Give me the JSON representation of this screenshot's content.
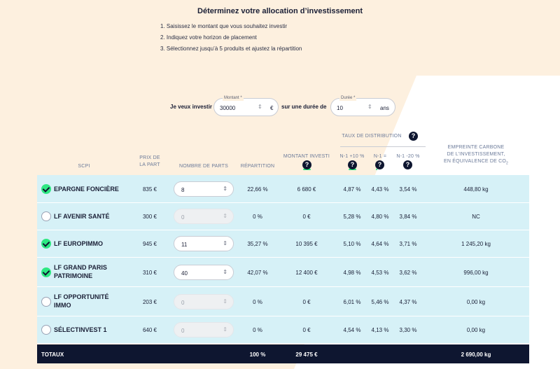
{
  "title": "Déterminez votre allocation d’investissement",
  "steps": [
    "1.  Saisissez le montant que vous souhaitez investir",
    "2.  Indiquez votre horizon de placement",
    "3.  Sélectionnez jusqu’à 5 produits et ajustez la répartition"
  ],
  "form": {
    "invest_label": "Je veux investir",
    "amount_label": "Montant *",
    "amount_value": "30000",
    "amount_unit": "€",
    "duration_text": "sur une durée de",
    "duration_label": "Durée *",
    "duration_value": "10",
    "duration_unit": "ans"
  },
  "headers": {
    "scpi": "SCPI",
    "prix1": "PRIX DE",
    "prix2": "LA PART",
    "parts": "NOMBRE DE PARTS",
    "repartition": "RÉPARTITION",
    "montant": "MONTANT INVESTI",
    "taux": "TAUX DE DISTRIBUTION",
    "n1plus": "N-1 +10 %",
    "n1eq": "N-1 =",
    "n1minus": "N-1 -20 %",
    "emp1": "EMPREINTE CARBONE",
    "emp2": "DE L’INVESTISSEMENT,",
    "emp3": "EN ÉQUIVALENCE DE CO",
    "emp3sub": "2"
  },
  "rows": [
    {
      "name1": "EPARGNE FONCIÈRE",
      "name2": "",
      "checked": true,
      "prix": "835 €",
      "parts": "8",
      "rep": "22,66 %",
      "montant": "6 680 €",
      "plus": "4,87 %",
      "eq": "4,43 %",
      "minus": "3,54 %",
      "co2": "448,80 kg"
    },
    {
      "name1": "LF AVENIR SANTÉ",
      "name2": "",
      "checked": false,
      "prix": "300 €",
      "parts": "0",
      "rep": "0 %",
      "montant": "0 €",
      "plus": "5,28 %",
      "eq": "4,80 %",
      "minus": "3,84 %",
      "co2": "NC"
    },
    {
      "name1": "LF EUROPIMMO",
      "name2": "",
      "checked": true,
      "prix": "945 €",
      "parts": "11",
      "rep": "35,27 %",
      "montant": "10 395 €",
      "plus": "5,10 %",
      "eq": "4,64 %",
      "minus": "3,71 %",
      "co2": "1 245,20 kg"
    },
    {
      "name1": "LF GRAND PARIS",
      "name2": "PATRIMOINE",
      "checked": true,
      "prix": "310 €",
      "parts": "40",
      "rep": "42,07 %",
      "montant": "12 400 €",
      "plus": "4,98 %",
      "eq": "4,53 %",
      "minus": "3,62 %",
      "co2": "996,00 kg"
    },
    {
      "name1": "LF OPPORTUNITÉ",
      "name2": "IMMO",
      "checked": false,
      "prix": "203 €",
      "parts": "0",
      "rep": "0 %",
      "montant": "0 €",
      "plus": "6,01 %",
      "eq": "5,46 %",
      "minus": "4,37 %",
      "co2": "0,00 kg"
    },
    {
      "name1": "SÉLECTINVEST 1",
      "name2": "",
      "checked": false,
      "prix": "640 €",
      "parts": "0",
      "rep": "0 %",
      "montant": "0 €",
      "plus": "4,54 %",
      "eq": "4,13 %",
      "minus": "3,30 %",
      "co2": "0,00 kg"
    }
  ],
  "totals": {
    "label": "TOTAUX",
    "rep": "100 %",
    "montant": "29 475 €",
    "co2": "2 690,00 kg"
  },
  "icons": {
    "check": "check-icon",
    "help": "question-icon",
    "spinner": "spinner-arrows-icon"
  },
  "colors": {
    "accent_green": "#2ee882",
    "navy": "#0e1630",
    "row_bg": "#d6f1f7",
    "page_bg": "#fdf0df"
  }
}
